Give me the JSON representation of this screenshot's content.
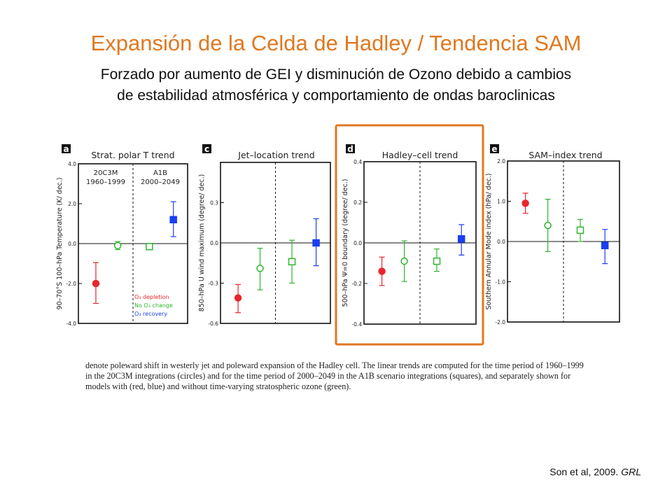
{
  "slide": {
    "title": "Expansión de la Celda de Hadley / Tendencia SAM",
    "subtitle_line1": "Forzado por aumento de GEI y disminución de Ozono debido a cambios",
    "subtitle_line2": "de estabilidad atmosférica y comportamiento de ondas baroclinicas",
    "caption": "denote poleward shift in westerly jet and poleward expansion of the Hadley cell. The linear trends are computed for the time period of 1960–1999 in the 20C3M integrations (circles) and for the time period of 2000–2049 in the A1B scenario integrations (squares), and separately shown for models with (red, blue) and without time-varying stratospheric ozone (green).",
    "citation_authors": "Son et al, 2009.",
    "citation_journal": "GRL"
  },
  "colors": {
    "title": "#e07820",
    "highlight_box": "#e07820",
    "red": "#e8262d",
    "green": "#2fb52f",
    "blue": "#1a3ff0"
  },
  "chart_data": [
    {
      "type": "scatter",
      "panel_letter": "a",
      "title": "Strat. polar T trend",
      "ylabel": "90–70°S 100–hPa Temperature (K/ dec.)",
      "ylim": [
        -4.0,
        4.0
      ],
      "yticks": [
        "4.0",
        "2.0",
        "0.0",
        "-2.0",
        "-4.0"
      ],
      "ytick_values": [
        4.0,
        2.0,
        0.0,
        -2.0,
        -4.0
      ],
      "period_labels": [
        [
          "20C3M",
          "1960–1999"
        ],
        [
          "A1B",
          "2000–2049"
        ]
      ],
      "legend": [
        "O₃ depletion",
        "No O₃ change",
        "O₃ recovery"
      ],
      "points": [
        {
          "pos": 1,
          "series": "O₃ depletion",
          "marker": "filled-circle",
          "value": -2.0,
          "low": -3.0,
          "high": -0.95
        },
        {
          "pos": 2,
          "series": "No O₃ change",
          "marker": "open-circle",
          "value": -0.1,
          "low": -0.3,
          "high": 0.1
        },
        {
          "pos": 3,
          "series": "No O₃ change",
          "marker": "open-square",
          "value": -0.15,
          "low": -0.2,
          "high": -0.1
        },
        {
          "pos": 4,
          "series": "O₃ recovery",
          "marker": "filled-square",
          "value": 1.2,
          "low": 0.35,
          "high": 2.1
        }
      ]
    },
    {
      "type": "scatter",
      "panel_letter": "c",
      "title": "Jet–location trend",
      "ylabel": "850–hPa U wind maximum (degree/ dec.)",
      "ylim": [
        -0.6,
        0.6
      ],
      "yticks": [
        "0.3",
        "0.0",
        "-0.3",
        "-0.6"
      ],
      "ytick_values": [
        0.3,
        0.0,
        -0.3,
        -0.6
      ],
      "points": [
        {
          "pos": 1,
          "series": "O₃ depletion",
          "marker": "filled-circle",
          "value": -0.41,
          "low": -0.52,
          "high": -0.31
        },
        {
          "pos": 2,
          "series": "No O₃ change",
          "marker": "open-circle",
          "value": -0.19,
          "low": -0.35,
          "high": -0.04
        },
        {
          "pos": 3,
          "series": "No O₃ change",
          "marker": "open-square",
          "value": -0.14,
          "low": -0.3,
          "high": 0.02
        },
        {
          "pos": 4,
          "series": "O₃ recovery",
          "marker": "filled-square",
          "value": 0.0,
          "low": -0.17,
          "high": 0.18
        }
      ]
    },
    {
      "type": "scatter",
      "panel_letter": "d",
      "title": "Hadley–cell trend",
      "ylabel": "500–hPa Ψ=0 boundary (degree/ dec.)",
      "ylim": [
        -0.4,
        0.4
      ],
      "yticks": [
        "0.4",
        "0.2",
        "0.0",
        "-0.2",
        "-0.4"
      ],
      "ytick_values": [
        0.4,
        0.2,
        0.0,
        -0.2,
        -0.4
      ],
      "points": [
        {
          "pos": 1,
          "series": "O₃ depletion",
          "marker": "filled-circle",
          "value": -0.14,
          "low": -0.21,
          "high": -0.07
        },
        {
          "pos": 2,
          "series": "No O₃ change",
          "marker": "open-circle",
          "value": -0.09,
          "low": -0.19,
          "high": 0.01
        },
        {
          "pos": 3,
          "series": "No O₃ change",
          "marker": "open-square",
          "value": -0.09,
          "low": -0.14,
          "high": -0.03
        },
        {
          "pos": 4,
          "series": "O₃ recovery",
          "marker": "filled-square",
          "value": 0.02,
          "low": -0.06,
          "high": 0.09
        }
      ]
    },
    {
      "type": "scatter",
      "panel_letter": "e",
      "title": "SAM–index trend",
      "ylabel": "Southern Annular Mode index (hPa/ dec.)",
      "ylim": [
        -2.0,
        2.0
      ],
      "yticks": [
        "2.0",
        "1.0",
        "0.0",
        "-1.0",
        "-2.0"
      ],
      "ytick_values": [
        2.0,
        1.0,
        0.0,
        -1.0,
        -2.0
      ],
      "points": [
        {
          "pos": 1,
          "series": "O₃ depletion",
          "marker": "filled-circle",
          "value": 0.95,
          "low": 0.7,
          "high": 1.2
        },
        {
          "pos": 2,
          "series": "No O₃ change",
          "marker": "open-circle",
          "value": 0.4,
          "low": -0.25,
          "high": 1.05
        },
        {
          "pos": 3,
          "series": "No O₃ change",
          "marker": "open-square",
          "value": 0.28,
          "low": 0.0,
          "high": 0.55
        },
        {
          "pos": 4,
          "series": "O₃ recovery",
          "marker": "filled-square",
          "value": -0.1,
          "low": -0.55,
          "high": 0.3
        }
      ]
    }
  ]
}
